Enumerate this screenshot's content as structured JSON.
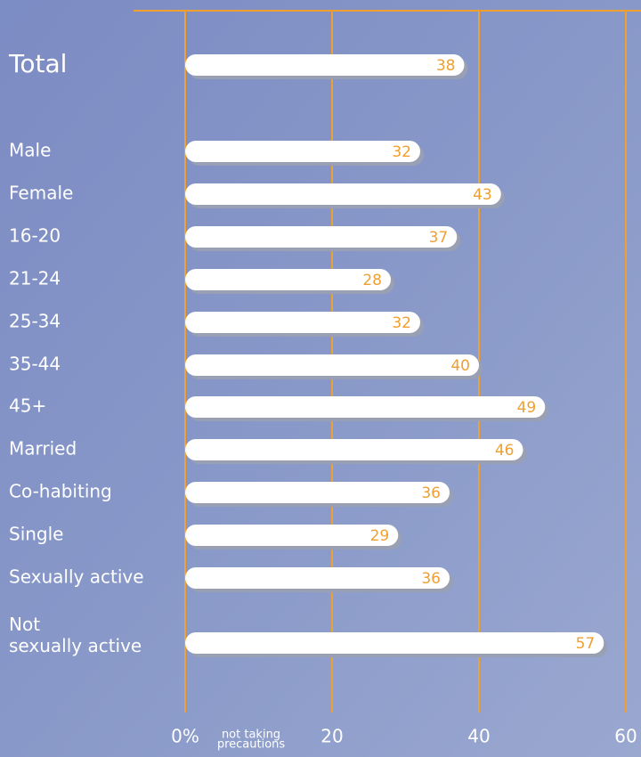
{
  "chart_data": {
    "type": "bar",
    "orientation": "horizontal",
    "categories": [
      "Total",
      "Male",
      "Female",
      "16-20",
      "21-24",
      "25-34",
      "35-44",
      "45+",
      "Married",
      "Co-habiting",
      "Single",
      "Sexually active",
      "Not\nsexually active"
    ],
    "values": [
      38,
      32,
      43,
      37,
      28,
      32,
      40,
      49,
      46,
      36,
      29,
      36,
      57
    ],
    "color": "#ffffff",
    "label_color": "#f0a030",
    "grid_color": "#f0a030",
    "xlim": [
      0,
      60
    ],
    "xticks": [
      {
        "value": 0,
        "label": "0%"
      },
      20,
      40,
      60
    ],
    "x_label": "not taking\nprecautions",
    "grid": true
  }
}
